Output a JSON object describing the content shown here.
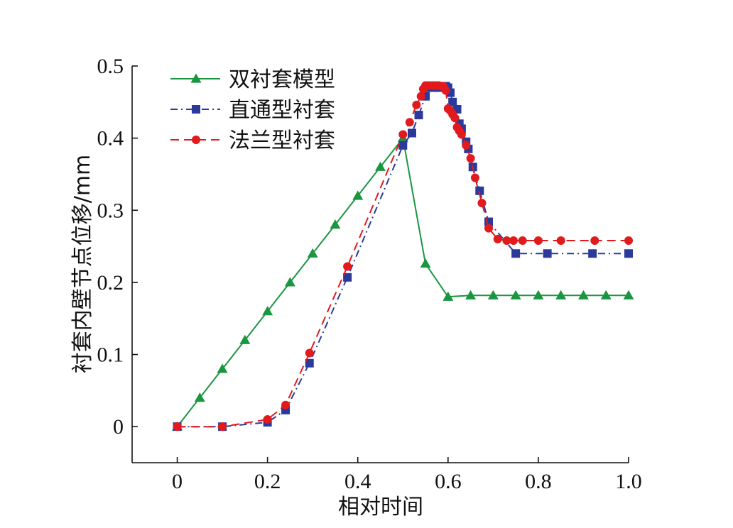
{
  "chart_data": {
    "type": "line",
    "xlabel": "相对时间",
    "ylabel": "衬套内壁节点位移/mm",
    "xlim": [
      -0.1,
      1.0
    ],
    "ylim": [
      -0.05,
      0.5
    ],
    "xticks": [
      0,
      0.2,
      0.4,
      0.6,
      0.8,
      1.0
    ],
    "xtick_labels": [
      "0",
      "0.2",
      "0.4",
      "0.6",
      "0.8",
      "1.0"
    ],
    "yticks": [
      0,
      0.1,
      0.2,
      0.3,
      0.4,
      0.5
    ],
    "ytick_labels": [
      "0",
      "0.1",
      "0.2",
      "0.3",
      "0.4",
      "0.5"
    ],
    "grid": false,
    "legend_position": "top-left",
    "series": [
      {
        "name": "双衬套模型",
        "color": "#1a9641",
        "marker": "triangle",
        "line_style": "solid",
        "x": [
          0,
          0.05,
          0.1,
          0.15,
          0.2,
          0.25,
          0.3,
          0.35,
          0.4,
          0.45,
          0.5,
          0.55,
          0.6,
          0.65,
          0.7,
          0.75,
          0.8,
          0.85,
          0.9,
          0.95,
          1.0
        ],
        "y": [
          0,
          0.04,
          0.08,
          0.12,
          0.16,
          0.2,
          0.24,
          0.28,
          0.32,
          0.36,
          0.4,
          0.226,
          0.18,
          0.182,
          0.182,
          0.182,
          0.182,
          0.182,
          0.182,
          0.182,
          0.182
        ]
      },
      {
        "name": "直通型衬套",
        "color": "#2b3a9a",
        "marker": "square",
        "line_style": "dashdot",
        "x": [
          0,
          0.1,
          0.2,
          0.24,
          0.293,
          0.377,
          0.5,
          0.52,
          0.535,
          0.55,
          0.56,
          0.57,
          0.58,
          0.59,
          0.595,
          0.6,
          0.605,
          0.61,
          0.62,
          0.625,
          0.63,
          0.64,
          0.645,
          0.655,
          0.67,
          0.69,
          0.75,
          0.82,
          0.92,
          1.0
        ],
        "y": [
          0,
          0,
          0.006,
          0.023,
          0.088,
          0.207,
          0.39,
          0.407,
          0.432,
          0.458,
          0.47,
          0.47,
          0.47,
          0.472,
          0.472,
          0.47,
          0.463,
          0.45,
          0.44,
          0.42,
          0.413,
          0.395,
          0.385,
          0.36,
          0.327,
          0.284,
          0.24,
          0.24,
          0.24,
          0.24
        ]
      },
      {
        "name": "法兰型衬套",
        "color": "#e31a1c",
        "marker": "circle",
        "line_style": "dashed",
        "x": [
          0,
          0.1,
          0.2,
          0.24,
          0.293,
          0.377,
          0.5,
          0.515,
          0.53,
          0.54,
          0.545,
          0.55,
          0.555,
          0.56,
          0.565,
          0.57,
          0.575,
          0.58,
          0.585,
          0.59,
          0.595,
          0.6,
          0.605,
          0.61,
          0.615,
          0.62,
          0.625,
          0.63,
          0.64,
          0.65,
          0.66,
          0.675,
          0.69,
          0.71,
          0.73,
          0.745,
          0.765,
          0.8,
          0.85,
          0.925,
          1.0
        ],
        "y": [
          0,
          0,
          0.01,
          0.03,
          0.102,
          0.222,
          0.405,
          0.422,
          0.446,
          0.458,
          0.468,
          0.473,
          0.473,
          0.473,
          0.473,
          0.473,
          0.473,
          0.473,
          0.472,
          0.472,
          0.466,
          0.441,
          0.438,
          0.433,
          0.428,
          0.415,
          0.41,
          0.405,
          0.39,
          0.372,
          0.345,
          0.31,
          0.275,
          0.26,
          0.258,
          0.258,
          0.258,
          0.258,
          0.258,
          0.258,
          0.258
        ]
      }
    ]
  }
}
